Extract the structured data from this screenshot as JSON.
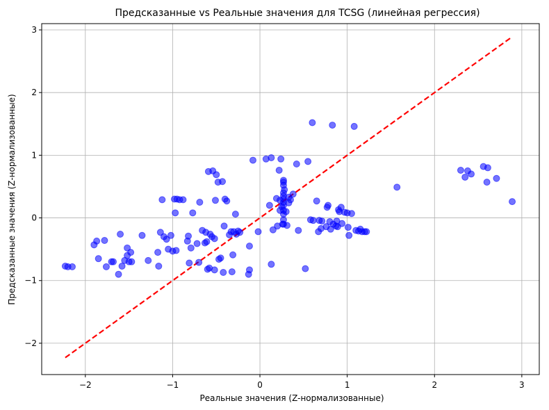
{
  "chart_data": {
    "type": "scatter",
    "title": "Предсказанные vs Реальные значения для TCSG (линейная регрессия)",
    "xlabel": "Реальные значения (Z-нормализованные)",
    "ylabel": "Предсказанные значения (Z-нормализованные)",
    "xlim": [
      -2.5,
      3.2
    ],
    "ylim": [
      -2.5,
      3.1
    ],
    "xticks": [
      -2,
      -1,
      0,
      1,
      2,
      3
    ],
    "yticks": [
      -2,
      -1,
      0,
      1,
      2,
      3
    ],
    "xtick_labels": [
      "−2",
      "−1",
      "0",
      "1",
      "2",
      "3"
    ],
    "ytick_labels": [
      "−2",
      "−1",
      "0",
      "1",
      "2",
      "3"
    ],
    "grid": true,
    "point_color": "#0000ff",
    "point_alpha": 0.55,
    "reference_line": {
      "from": [
        -2.23,
        -2.23
      ],
      "to": [
        2.89,
        2.89
      ],
      "color": "#ff0000",
      "style": "dashed"
    },
    "points": [
      [
        -2.23,
        -0.77
      ],
      [
        -2.2,
        -0.78
      ],
      [
        -2.15,
        -0.78
      ],
      [
        -1.9,
        -0.43
      ],
      [
        -1.87,
        -0.37
      ],
      [
        -1.85,
        -0.65
      ],
      [
        -1.78,
        -0.36
      ],
      [
        -1.76,
        -0.78
      ],
      [
        -1.7,
        -0.7
      ],
      [
        -1.68,
        -0.7
      ],
      [
        -1.62,
        -0.9
      ],
      [
        -1.6,
        -0.26
      ],
      [
        -1.58,
        -0.77
      ],
      [
        -1.55,
        -0.68
      ],
      [
        -1.52,
        -0.48
      ],
      [
        -1.52,
        -0.6
      ],
      [
        -1.5,
        -0.7
      ],
      [
        -1.48,
        -0.55
      ],
      [
        -1.47,
        -0.7
      ],
      [
        -1.35,
        -0.28
      ],
      [
        -1.28,
        -0.68
      ],
      [
        -1.17,
        -0.55
      ],
      [
        -1.16,
        -0.77
      ],
      [
        -1.14,
        -0.23
      ],
      [
        -1.12,
        0.29
      ],
      [
        -1.1,
        -0.3
      ],
      [
        -1.07,
        -0.34
      ],
      [
        -1.05,
        -0.5
      ],
      [
        -1.02,
        -0.28
      ],
      [
        -1.0,
        -0.53
      ],
      [
        -0.98,
        0.3
      ],
      [
        -0.97,
        0.08
      ],
      [
        -0.96,
        -0.52
      ],
      [
        -0.95,
        0.3
      ],
      [
        -0.92,
        0.29
      ],
      [
        -0.88,
        0.29
      ],
      [
        -0.83,
        -0.37
      ],
      [
        -0.82,
        -0.29
      ],
      [
        -0.81,
        -0.72
      ],
      [
        -0.79,
        -0.48
      ],
      [
        -0.77,
        0.08
      ],
      [
        -0.72,
        -0.41
      ],
      [
        -0.7,
        -0.71
      ],
      [
        -0.69,
        0.25
      ],
      [
        -0.66,
        -0.2
      ],
      [
        -0.63,
        -0.4
      ],
      [
        -0.62,
        -0.23
      ],
      [
        -0.61,
        -0.38
      ],
      [
        -0.6,
        -0.82
      ],
      [
        -0.59,
        0.74
      ],
      [
        -0.58,
        -0.8
      ],
      [
        -0.57,
        -0.26
      ],
      [
        -0.55,
        -0.3
      ],
      [
        -0.54,
        0.75
      ],
      [
        -0.52,
        -0.33
      ],
      [
        -0.52,
        -0.83
      ],
      [
        -0.51,
        0.28
      ],
      [
        -0.5,
        0.69
      ],
      [
        -0.48,
        0.57
      ],
      [
        -0.47,
        -0.66
      ],
      [
        -0.45,
        -0.64
      ],
      [
        -0.43,
        0.58
      ],
      [
        -0.42,
        -0.87
      ],
      [
        -0.41,
        -0.13
      ],
      [
        -0.4,
        0.3
      ],
      [
        -0.38,
        0.27
      ],
      [
        -0.35,
        -0.27
      ],
      [
        -0.33,
        -0.22
      ],
      [
        -0.32,
        -0.86
      ],
      [
        -0.31,
        -0.59
      ],
      [
        -0.3,
        -0.22
      ],
      [
        -0.28,
        0.06
      ],
      [
        -0.27,
        -0.26
      ],
      [
        -0.25,
        -0.21
      ],
      [
        -0.23,
        -0.23
      ],
      [
        -0.13,
        -0.9
      ],
      [
        -0.12,
        -0.45
      ],
      [
        -0.12,
        -0.83
      ],
      [
        -0.08,
        0.92
      ],
      [
        -0.02,
        -0.22
      ],
      [
        0.07,
        0.94
      ],
      [
        0.11,
        0.2
      ],
      [
        0.13,
        0.96
      ],
      [
        0.13,
        -0.74
      ],
      [
        0.15,
        -0.19
      ],
      [
        0.19,
        0.31
      ],
      [
        0.2,
        -0.13
      ],
      [
        0.22,
        0.76
      ],
      [
        0.23,
        0.12
      ],
      [
        0.23,
        0.28
      ],
      [
        0.24,
        0.94
      ],
      [
        0.25,
        0.18
      ],
      [
        0.26,
        -0.1
      ],
      [
        0.27,
        0.4
      ],
      [
        0.27,
        0.35
      ],
      [
        0.27,
        0.3
      ],
      [
        0.27,
        0.25
      ],
      [
        0.27,
        0.2
      ],
      [
        0.27,
        0.12
      ],
      [
        0.27,
        0.06
      ],
      [
        0.27,
        -0.03
      ],
      [
        0.27,
        -0.1
      ],
      [
        0.27,
        0.57
      ],
      [
        0.27,
        0.6
      ],
      [
        0.27,
        0.52
      ],
      [
        0.28,
        0.45
      ],
      [
        0.3,
        0.1
      ],
      [
        0.31,
        -0.12
      ],
      [
        0.33,
        0.24
      ],
      [
        0.33,
        0.33
      ],
      [
        0.35,
        0.29
      ],
      [
        0.38,
        0.38
      ],
      [
        0.42,
        0.86
      ],
      [
        0.44,
        -0.2
      ],
      [
        0.52,
        -0.81
      ],
      [
        0.55,
        0.9
      ],
      [
        0.58,
        -0.03
      ],
      [
        0.6,
        1.52
      ],
      [
        0.61,
        -0.04
      ],
      [
        0.65,
        0.27
      ],
      [
        0.67,
        -0.22
      ],
      [
        0.68,
        -0.04
      ],
      [
        0.7,
        -0.17
      ],
      [
        0.71,
        -0.05
      ],
      [
        0.76,
        -0.14
      ],
      [
        0.77,
        0.17
      ],
      [
        0.78,
        0.2
      ],
      [
        0.8,
        -0.06
      ],
      [
        0.81,
        -0.18
      ],
      [
        0.83,
        1.48
      ],
      [
        0.84,
        -0.1
      ],
      [
        0.87,
        -0.13
      ],
      [
        0.88,
        -0.05
      ],
      [
        0.89,
        -0.14
      ],
      [
        0.9,
        0.13
      ],
      [
        0.91,
        0.1
      ],
      [
        0.93,
        0.17
      ],
      [
        0.94,
        -0.09
      ],
      [
        0.97,
        0.09
      ],
      [
        1.0,
        0.08
      ],
      [
        1.01,
        -0.15
      ],
      [
        1.02,
        -0.28
      ],
      [
        1.05,
        0.07
      ],
      [
        1.08,
        1.46
      ],
      [
        1.1,
        -0.2
      ],
      [
        1.13,
        -0.21
      ],
      [
        1.15,
        -0.18
      ],
      [
        1.17,
        -0.22
      ],
      [
        1.2,
        -0.22
      ],
      [
        1.22,
        -0.22
      ],
      [
        1.57,
        0.49
      ],
      [
        2.3,
        0.76
      ],
      [
        2.35,
        0.65
      ],
      [
        2.38,
        0.75
      ],
      [
        2.42,
        0.7
      ],
      [
        2.56,
        0.82
      ],
      [
        2.6,
        0.57
      ],
      [
        2.61,
        0.8
      ],
      [
        2.71,
        0.63
      ],
      [
        2.89,
        0.26
      ]
    ]
  }
}
